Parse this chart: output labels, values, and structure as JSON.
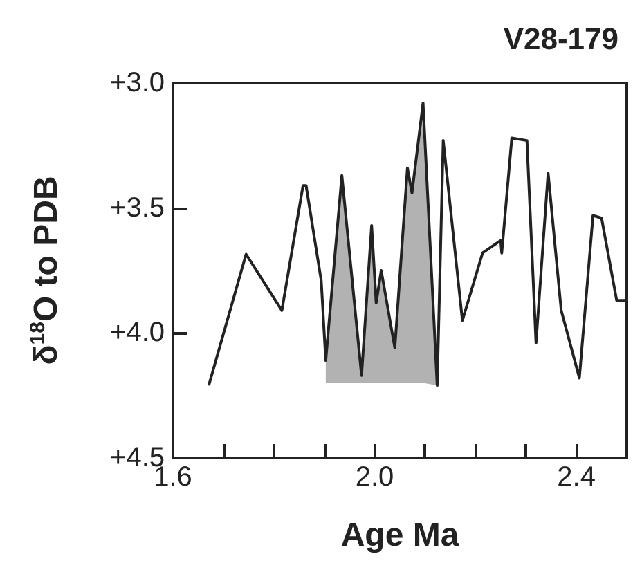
{
  "chart_data": {
    "type": "line",
    "title": "V28-179",
    "xlabel": "Age Ma",
    "ylabel": "δ$^{18}$O to PDB",
    "xlim": [
      1.6,
      2.5
    ],
    "ylim": [
      4.5,
      3.0
    ],
    "xticks": [
      {
        "value": 1.6,
        "label": "1.6"
      },
      {
        "value": 1.7,
        "label": null
      },
      {
        "value": 1.8,
        "label": null
      },
      {
        "value": 1.9,
        "label": null
      },
      {
        "value": 2.0,
        "label": "2.0"
      },
      {
        "value": 2.1,
        "label": null
      },
      {
        "value": 2.2,
        "label": null
      },
      {
        "value": 2.3,
        "label": null
      },
      {
        "value": 2.4,
        "label": "2.4"
      }
    ],
    "yticks": [
      {
        "value": 3.0,
        "label": "+3.0"
      },
      {
        "value": 3.5,
        "label": "+3.5"
      },
      {
        "value": 4.0,
        "label": "+4.0"
      },
      {
        "value": 4.5,
        "label": "+4.5"
      }
    ],
    "grid": false,
    "marker": "none",
    "line_style": "solid",
    "series": [
      {
        "color": "#222222",
        "x": [
          1.671,
          1.745,
          1.816,
          1.858,
          1.864,
          1.894,
          1.903,
          1.935,
          1.974,
          1.994,
          2.003,
          2.013,
          2.04,
          2.065,
          2.074,
          2.096,
          2.124,
          2.136,
          2.174,
          2.214,
          2.25,
          2.252,
          2.272,
          2.302,
          2.32,
          2.344,
          2.37,
          2.406,
          2.433,
          2.45,
          2.48,
          2.497
        ],
        "values": [
          4.21,
          3.685,
          3.91,
          3.41,
          3.41,
          3.79,
          4.11,
          3.37,
          4.17,
          3.57,
          3.88,
          3.75,
          4.06,
          3.34,
          3.44,
          3.08,
          4.21,
          3.23,
          3.95,
          3.68,
          3.63,
          3.68,
          3.22,
          3.23,
          4.04,
          3.36,
          3.91,
          4.18,
          3.53,
          3.54,
          3.87,
          3.87
        ],
        "lower": [
          null,
          null,
          null,
          null,
          null,
          null,
          4.11,
          3.37,
          4.17,
          3.57,
          3.88,
          3.75,
          4.06,
          3.34,
          3.44,
          3.08,
          4.21,
          null,
          null,
          null,
          null,
          null,
          null,
          null,
          null,
          null,
          null,
          null,
          null,
          null,
          null,
          null
        ],
        "upper": [
          null,
          null,
          null,
          null,
          null,
          null,
          4.2,
          4.2,
          4.2,
          4.2,
          4.2,
          4.2,
          4.2,
          4.2,
          4.2,
          4.2,
          4.21,
          null,
          null,
          null,
          null,
          null,
          null,
          null,
          null,
          null,
          null,
          null,
          null,
          null,
          null,
          null
        ]
      }
    ]
  }
}
